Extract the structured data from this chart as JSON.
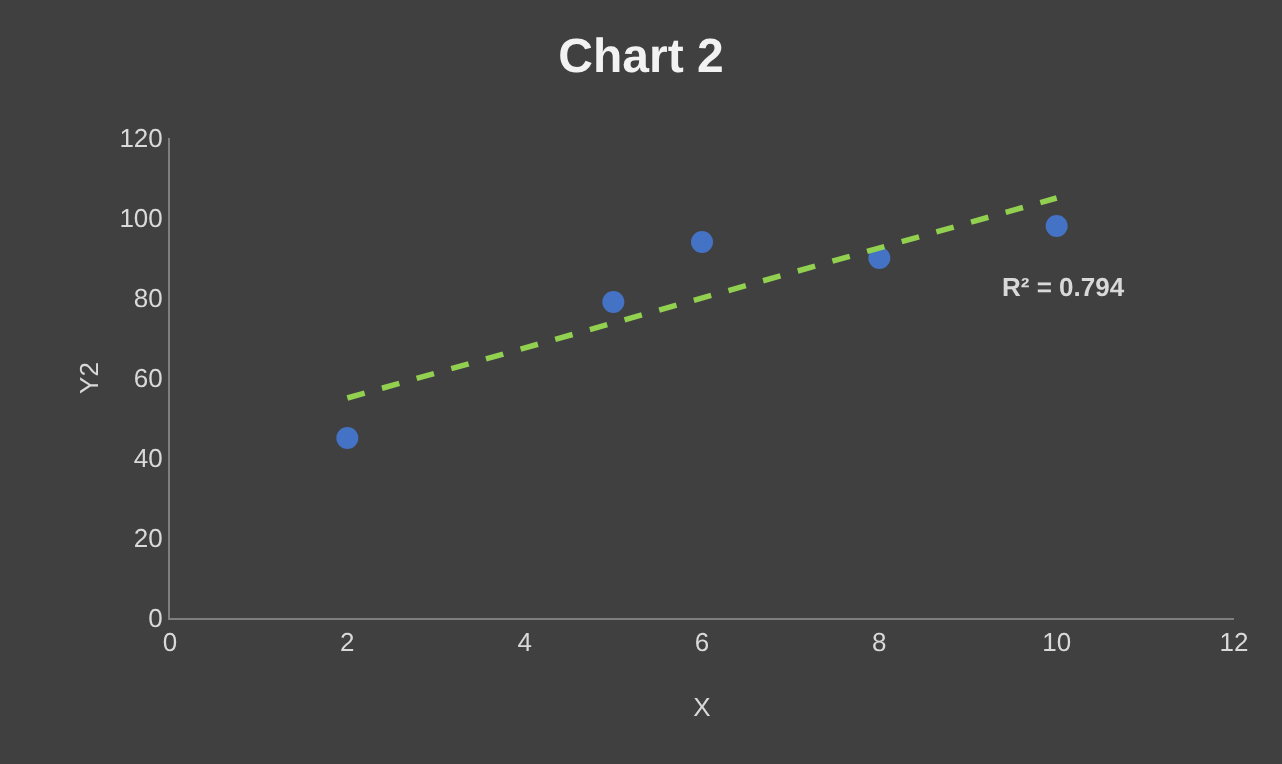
{
  "chart_data": {
    "type": "scatter",
    "title": "Chart 2",
    "xlabel": "X",
    "ylabel": "Y2",
    "x": [
      2,
      5,
      6,
      8,
      10
    ],
    "series": [
      {
        "color": "#4472c4",
        "marker": "circle",
        "values": [
          45,
          79,
          94,
          90,
          98
        ]
      },
      {
        "type": "line",
        "color": "#92d050",
        "line_style": "dashed",
        "marker": "none",
        "x": [
          2,
          10
        ],
        "values": [
          55,
          105
        ]
      }
    ],
    "xlim": [
      0,
      12
    ],
    "xticks": [
      0,
      2,
      4,
      6,
      8,
      10,
      12
    ],
    "ylim": [
      0,
      120
    ],
    "yticks": [
      0,
      20,
      40,
      60,
      80,
      100,
      120
    ],
    "grid": false,
    "annotations": [
      "R² = 0.794"
    ]
  }
}
